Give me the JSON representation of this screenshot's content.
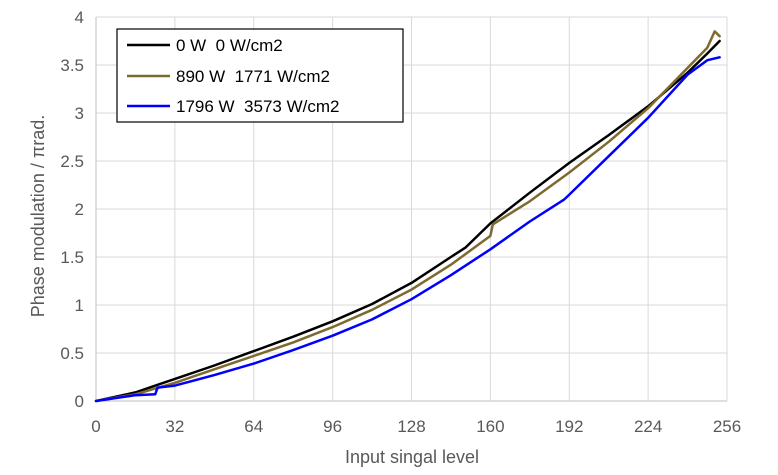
{
  "chart_data": {
    "type": "line",
    "title": "",
    "xlabel": "Input singal level",
    "ylabel": "Phase modulation / πrad.",
    "xlim": [
      0,
      256
    ],
    "ylim": [
      0,
      4
    ],
    "xticks": [
      0,
      32,
      64,
      96,
      128,
      160,
      192,
      224,
      256
    ],
    "yticks": [
      0,
      0.5,
      1,
      1.5,
      2,
      2.5,
      3,
      3.5,
      4
    ],
    "ytick_labels": [
      "0",
      "0.5",
      "1",
      "1.5",
      "2",
      "2.5",
      "3",
      "3.5",
      "4"
    ],
    "grid": true,
    "legend_position": "top-left",
    "series": [
      {
        "name": "0 W  0 W/cm2",
        "color": "#000000",
        "x": [
          0,
          16,
          32,
          48,
          64,
          80,
          96,
          112,
          128,
          144,
          150,
          160,
          176,
          192,
          208,
          224,
          240,
          248,
          253
        ],
        "y": [
          0,
          0.09,
          0.23,
          0.37,
          0.52,
          0.67,
          0.83,
          1.01,
          1.23,
          1.5,
          1.6,
          1.85,
          2.17,
          2.48,
          2.77,
          3.07,
          3.42,
          3.62,
          3.75
        ]
      },
      {
        "name": "890 W  1771 W/cm2",
        "color": "#7F6A2E",
        "x": [
          0,
          16,
          32,
          48,
          64,
          80,
          96,
          112,
          128,
          144,
          160,
          161,
          176,
          192,
          208,
          224,
          240,
          248,
          251,
          253
        ],
        "y": [
          0,
          0.07,
          0.19,
          0.33,
          0.47,
          0.61,
          0.77,
          0.95,
          1.16,
          1.42,
          1.72,
          1.84,
          2.08,
          2.38,
          2.7,
          3.05,
          3.47,
          3.68,
          3.85,
          3.8
        ]
      },
      {
        "name": "1796 W  3573 W/cm2",
        "color": "#0000FF",
        "x": [
          0,
          16,
          24,
          25,
          32,
          48,
          64,
          80,
          96,
          112,
          128,
          144,
          160,
          176,
          190,
          192,
          208,
          224,
          240,
          248,
          253
        ],
        "y": [
          0,
          0.06,
          0.07,
          0.14,
          0.16,
          0.27,
          0.39,
          0.53,
          0.68,
          0.85,
          1.06,
          1.31,
          1.58,
          1.87,
          2.1,
          2.15,
          2.55,
          2.95,
          3.4,
          3.55,
          3.58
        ]
      }
    ]
  }
}
